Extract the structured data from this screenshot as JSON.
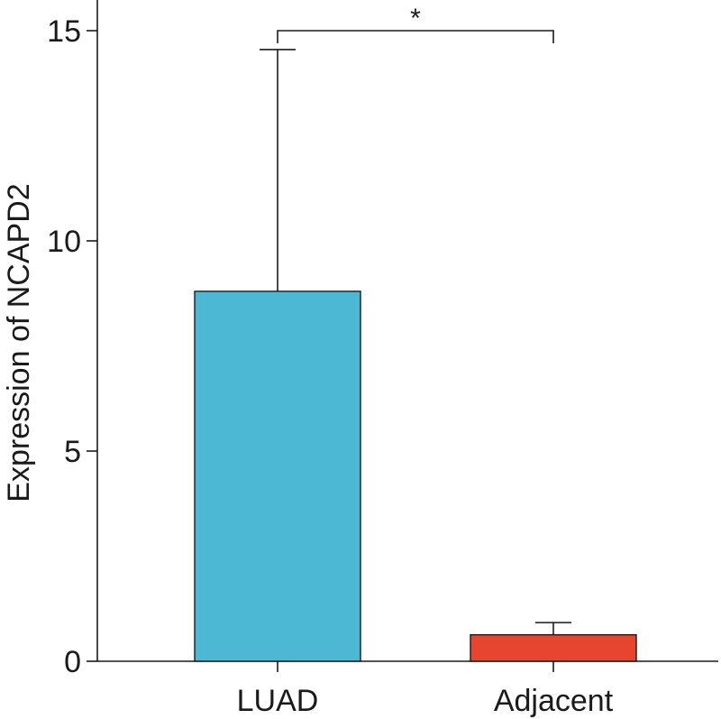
{
  "chart_data": {
    "type": "bar",
    "categories": [
      "LUAD",
      "Adjacent"
    ],
    "values": [
      8.8,
      0.63
    ],
    "error_upper": [
      14.55,
      0.92
    ],
    "bar_colors": [
      "#4db8d4",
      "#e8452f"
    ],
    "ylabel": "Expression of NCAPD2",
    "xlabel": "",
    "ylim": [
      0,
      16
    ],
    "yticks": [
      0,
      5,
      10,
      15
    ],
    "grid": false,
    "significance": {
      "between": [
        "LUAD",
        "Adjacent"
      ],
      "y": 15,
      "label": "*"
    }
  }
}
